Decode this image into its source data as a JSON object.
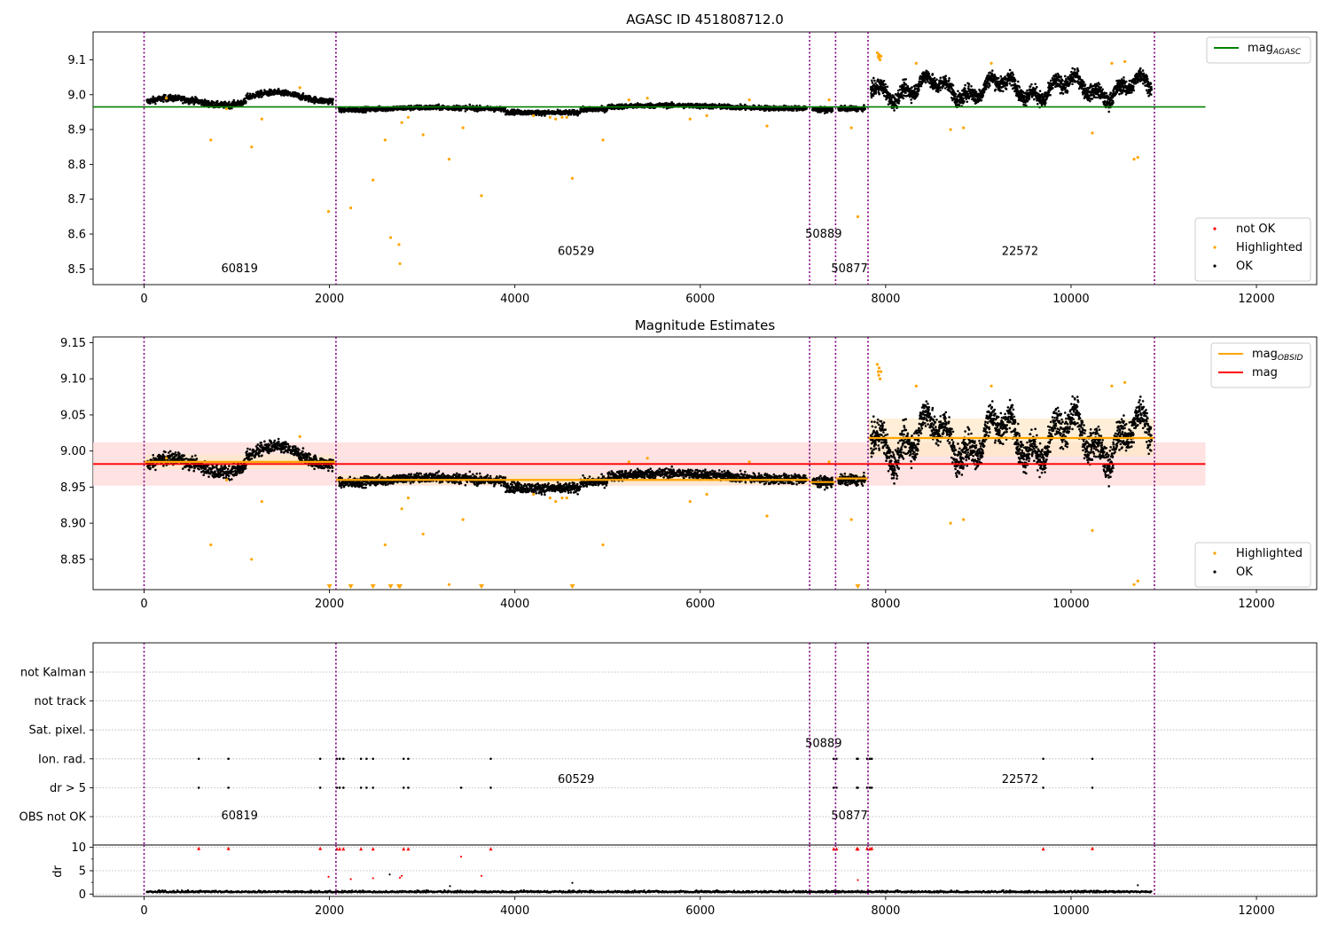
{
  "colors": {
    "ok": "#000000",
    "highlighted": "#ffa500",
    "not_ok": "#ff0000",
    "agasc_line": "#008000",
    "mag_line": "#ff0000",
    "obsid_line": "#ffa500",
    "obsid_boundary": "#800080",
    "mag_band": "#ffdddd",
    "obsid_band": "#ffe8c8",
    "grid": "#b0b0b0"
  },
  "chart_data": [
    {
      "type": "scatter",
      "title": "AGASC ID 451808712.0",
      "xlabel": "",
      "ylabel": "",
      "xlim": [
        -550,
        12650
      ],
      "ylim": [
        8.455,
        9.18
      ],
      "xticks": [
        0,
        2000,
        4000,
        6000,
        8000,
        10000,
        12000
      ],
      "xtick_labels": [
        "0",
        "2000",
        "4000",
        "6000",
        "8000",
        "10000",
        "12000"
      ],
      "yticks": [
        8.5,
        8.6,
        8.7,
        8.8,
        8.9,
        9.0,
        9.1
      ],
      "ytick_labels": [
        "8.5",
        "8.6",
        "8.7",
        "8.8",
        "8.9",
        "9.0",
        "9.1"
      ],
      "obsid_boundaries": [
        0,
        2070,
        7180,
        7460,
        7810,
        10900
      ],
      "obsids": [
        {
          "label": "60819",
          "x": 1030,
          "y": 8.49
        },
        {
          "label": "60529",
          "x": 4660,
          "y": 8.54
        },
        {
          "label": "50889",
          "x": 7330,
          "y": 8.59
        },
        {
          "label": "50877",
          "x": 7610,
          "y": 8.49
        },
        {
          "label": "22572",
          "x": 9450,
          "y": 8.54
        }
      ],
      "mag_agasc": 8.965,
      "mag_agasc_xrange": [
        -550,
        11450
      ],
      "segments": [
        {
          "x0": 0,
          "x1": 2070,
          "mean": 8.982,
          "spread": 0.009
        },
        {
          "x0": 2070,
          "x1": 7180,
          "mean": 8.959,
          "spread": 0.007
        },
        {
          "x0": 7180,
          "x1": 7460,
          "mean": 8.957,
          "spread": 0.007
        },
        {
          "x0": 7460,
          "x1": 7810,
          "mean": 8.96,
          "spread": 0.007
        },
        {
          "x0": 7810,
          "x1": 10900,
          "mean": 9.018,
          "spread": 0.022
        }
      ],
      "highlighted": [
        [
          240,
          8.99
        ],
        [
          720,
          8.87
        ],
        [
          890,
          8.96
        ],
        [
          1160,
          8.85
        ],
        [
          1270,
          8.93
        ],
        [
          1680,
          9.02
        ],
        [
          1990,
          8.665
        ],
        [
          2230,
          8.675
        ],
        [
          2470,
          8.755
        ],
        [
          2600,
          8.87
        ],
        [
          2660,
          8.59
        ],
        [
          2750,
          8.57
        ],
        [
          2760,
          8.515
        ],
        [
          2780,
          8.92
        ],
        [
          2850,
          8.935
        ],
        [
          3010,
          8.885
        ],
        [
          3290,
          8.815
        ],
        [
          3440,
          8.905
        ],
        [
          3640,
          8.71
        ],
        [
          4200,
          8.94
        ],
        [
          4380,
          8.935
        ],
        [
          4440,
          8.93
        ],
        [
          4510,
          8.935
        ],
        [
          4560,
          8.935
        ],
        [
          4620,
          8.76
        ],
        [
          4950,
          8.87
        ],
        [
          5230,
          8.985
        ],
        [
          5430,
          8.99
        ],
        [
          5890,
          8.93
        ],
        [
          6070,
          8.94
        ],
        [
          6530,
          8.985
        ],
        [
          6720,
          8.91
        ],
        [
          7390,
          8.985
        ],
        [
          7630,
          8.905
        ],
        [
          7700,
          8.65
        ],
        [
          7910,
          9.12
        ],
        [
          7920,
          9.11
        ],
        [
          7925,
          9.105
        ],
        [
          7930,
          9.115
        ],
        [
          7940,
          9.1
        ],
        [
          7950,
          9.11
        ],
        [
          8330,
          9.09
        ],
        [
          8700,
          8.9
        ],
        [
          8840,
          8.905
        ],
        [
          9140,
          9.09
        ],
        [
          10230,
          8.89
        ],
        [
          10440,
          9.09
        ],
        [
          10580,
          9.095
        ],
        [
          10680,
          8.815
        ],
        [
          10720,
          8.82
        ]
      ],
      "not_ok": [],
      "legend": [
        {
          "label": "mag",
          "sub": "AGASC",
          "kind": "line",
          "color": "#008000"
        },
        {
          "label": "not OK",
          "kind": "point",
          "color": "#ff0000"
        },
        {
          "label": "Highlighted",
          "kind": "point",
          "color": "#ffa500"
        },
        {
          "label": "OK",
          "kind": "point",
          "color": "#000000"
        }
      ]
    },
    {
      "type": "scatter",
      "title": "Magnitude Estimates",
      "xlabel": "",
      "ylabel": "",
      "xlim": [
        -550,
        12650
      ],
      "ylim": [
        8.808,
        9.158
      ],
      "xticks": [
        0,
        2000,
        4000,
        6000,
        8000,
        10000,
        12000
      ],
      "xtick_labels": [
        "0",
        "2000",
        "4000",
        "6000",
        "8000",
        "10000",
        "12000"
      ],
      "yticks": [
        8.85,
        8.9,
        8.95,
        9.0,
        9.05,
        9.1,
        9.15
      ],
      "ytick_labels": [
        "8.85",
        "8.90",
        "8.95",
        "9.00",
        "9.05",
        "9.10",
        "9.15"
      ],
      "mag": 8.982,
      "mag_band": [
        8.952,
        9.012
      ],
      "mag_xrange": [
        -550,
        11450
      ],
      "obsid_mags": [
        {
          "x0": 0,
          "x1": 2070,
          "mag": 8.985,
          "band": [
            8.975,
            8.995
          ]
        },
        {
          "x0": 2070,
          "x1": 7180,
          "mag": 8.96,
          "band": [
            8.953,
            8.967
          ]
        },
        {
          "x0": 7180,
          "x1": 7460,
          "mag": 8.957,
          "band": [
            8.95,
            8.964
          ]
        },
        {
          "x0": 7460,
          "x1": 7810,
          "mag": 8.962,
          "band": [
            8.955,
            8.969
          ]
        },
        {
          "x0": 7810,
          "x1": 10900,
          "mag": 9.018,
          "band": [
            8.993,
            9.045
          ]
        }
      ],
      "below_range_markers": [
        2000,
        2230,
        2470,
        2660,
        2750,
        2760,
        3640,
        4620,
        7700
      ],
      "legend": [
        {
          "label": "mag",
          "sub": "OBSID",
          "kind": "line",
          "color": "#ffa500"
        },
        {
          "label": "mag",
          "kind": "line",
          "color": "#ff0000"
        },
        {
          "label": "Highlighted",
          "kind": "point",
          "color": "#ffa500"
        },
        {
          "label": "OK",
          "kind": "point",
          "color": "#000000"
        }
      ]
    },
    {
      "type": "scatter",
      "title": "",
      "xlabel": "",
      "ylabel": "",
      "flag_rows": [
        "not Kalman",
        "not track",
        "Sat. pixel.",
        "Ion. rad.",
        "dr > 5",
        "OBS not OK"
      ],
      "flags": {
        "Ion. rad.": [
          590,
          910,
          1900,
          2080,
          2110,
          2150,
          2340,
          2400,
          2470,
          2800,
          2850,
          3740,
          7440,
          7470,
          7690,
          7700,
          7800,
          7830,
          7850,
          9700,
          10230
        ],
        "dr > 5": [
          590,
          910,
          1900,
          2080,
          2110,
          2150,
          2340,
          2400,
          2470,
          2800,
          2850,
          3420,
          3740,
          7440,
          7470,
          7690,
          7700,
          7800,
          7830,
          7850,
          9700,
          10230
        ]
      }
    },
    {
      "type": "scatter",
      "title": "",
      "xlabel": "",
      "ylabel": "dr",
      "xlim": [
        -550,
        12650
      ],
      "ylim": [
        -0.5,
        10.5
      ],
      "xticks": [
        0,
        2000,
        4000,
        6000,
        8000,
        10000,
        12000
      ],
      "xtick_labels": [
        "0",
        "2000",
        "4000",
        "6000",
        "8000",
        "10000",
        "12000"
      ],
      "yticks": [
        0,
        5,
        10
      ],
      "ytick_labels": [
        "0",
        "5",
        "10"
      ],
      "dr_high": [
        [
          590,
          9.8
        ],
        [
          910,
          9.8
        ],
        [
          1900,
          9.8
        ],
        [
          2080,
          9.7
        ],
        [
          2110,
          9.7
        ],
        [
          2150,
          9.7
        ],
        [
          2340,
          9.7
        ],
        [
          2470,
          9.7
        ],
        [
          2800,
          9.7
        ],
        [
          2850,
          9.7
        ],
        [
          3740,
          9.7
        ],
        [
          7440,
          9.7
        ],
        [
          7470,
          9.7
        ],
        [
          7690,
          9.7
        ],
        [
          7700,
          9.7
        ],
        [
          7800,
          9.8
        ],
        [
          7830,
          9.7
        ],
        [
          7850,
          9.8
        ],
        [
          9700,
          9.7
        ],
        [
          10230,
          9.8
        ]
      ],
      "dr_mid_red": [
        [
          1990,
          3.7
        ],
        [
          2230,
          3.2
        ],
        [
          2470,
          3.4
        ],
        [
          2760,
          3.5
        ],
        [
          2780,
          3.9
        ],
        [
          3420,
          8.0
        ],
        [
          3640,
          3.9
        ],
        [
          7700,
          3.0
        ]
      ],
      "dr_mid_black": [
        [
          2650,
          4.2
        ],
        [
          3300,
          1.7
        ],
        [
          4620,
          2.4
        ],
        [
          10720,
          1.9
        ]
      ]
    }
  ]
}
